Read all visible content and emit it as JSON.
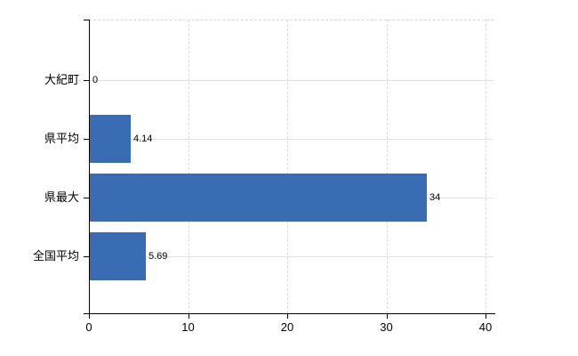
{
  "chart_data": {
    "type": "bar",
    "orientation": "horizontal",
    "title": "",
    "xlabel": "",
    "ylabel": "",
    "categories": [
      "大紀町",
      "県平均",
      "県最大",
      "全国平均"
    ],
    "values": [
      0,
      4.14,
      34,
      5.69
    ],
    "value_labels": [
      "0",
      "4.14",
      "34",
      "5.69"
    ],
    "xlim": [
      0,
      40
    ],
    "xticks": [
      0,
      10,
      20,
      30,
      40
    ],
    "xtick_labels": [
      "0",
      "10",
      "20",
      "30",
      "40"
    ],
    "grid": true,
    "legend": false,
    "colors": {
      "bar": "#3a6cb4",
      "axis": "#000000",
      "grid_horizontal": "#dfe4df",
      "grid_vertical": "#d9d9d9",
      "text": "#000000",
      "background": "#ffffff"
    }
  }
}
